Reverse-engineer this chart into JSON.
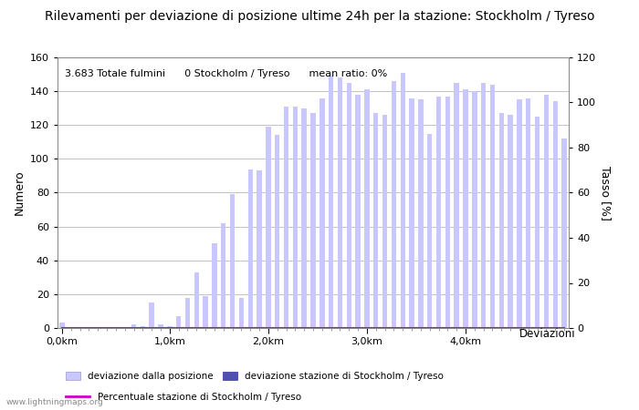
{
  "title": "Rilevamenti per deviazione di posizione ultime 24h per la stazione: Stockholm / Tyreso",
  "annotation": "3.683 Totale fulmini      0 Stockholm / Tyreso      mean ratio: 0%",
  "xlabel": "Deviazioni",
  "ylabel_left": "Numero",
  "ylabel_right": "Tasso [%]",
  "ylim_left": [
    0,
    160
  ],
  "ylim_right": [
    0,
    120
  ],
  "yticks_left": [
    0,
    20,
    40,
    60,
    80,
    100,
    120,
    140,
    160
  ],
  "yticks_right": [
    0,
    20,
    40,
    60,
    80,
    100,
    120
  ],
  "bar_values": [
    3,
    0,
    0,
    0,
    0,
    0,
    0,
    0,
    2,
    1,
    15,
    2,
    1,
    7,
    18,
    33,
    19,
    50,
    62,
    79,
    18,
    94,
    93,
    119,
    114,
    131,
    131,
    130,
    127,
    136,
    149,
    148,
    145,
    138,
    141,
    127,
    126,
    146,
    151,
    136,
    135,
    115,
    137,
    137,
    145,
    141,
    140,
    145,
    144,
    127,
    126,
    135,
    136,
    125,
    138,
    134,
    112
  ],
  "station_values": [
    0,
    0,
    0,
    0,
    0,
    0,
    0,
    0,
    0,
    0,
    0,
    0,
    0,
    0,
    0,
    0,
    0,
    0,
    0,
    0,
    0,
    0,
    0,
    0,
    0,
    0,
    0,
    0,
    0,
    0,
    0,
    0,
    0,
    0,
    0,
    0,
    0,
    0,
    0,
    0,
    0,
    0,
    0,
    0,
    0,
    0,
    0,
    0,
    0,
    0,
    0,
    0,
    0,
    0,
    0,
    0,
    0
  ],
  "percent_values": [
    0,
    0,
    0,
    0,
    0,
    0,
    0,
    0,
    0,
    0,
    0,
    0,
    0,
    0,
    0,
    0,
    0,
    0,
    0,
    0,
    0,
    0,
    0,
    0,
    0,
    0,
    0,
    0,
    0,
    0,
    0,
    0,
    0,
    0,
    0,
    0,
    0,
    0,
    0,
    0,
    0,
    0,
    0,
    0,
    0,
    0,
    0,
    0,
    0,
    0,
    0,
    0,
    0,
    0,
    0,
    0,
    0
  ],
  "bar_color": "#c8c8ff",
  "station_bar_color": "#5050b0",
  "percent_line_color": "#cc00cc",
  "xtick_labels": [
    "0,0km",
    "1,0km",
    "2,0km",
    "3,0km",
    "4,0km"
  ],
  "n_bars": 57,
  "bar_width": 0.55,
  "background_color": "#ffffff",
  "plot_bg_color": "#ffffff",
  "grid_color": "#aaaaaa",
  "legend_label_light": "deviazione dalla posizione",
  "legend_label_dark": "deviazione stazione di Stockholm / Tyreso",
  "legend_label_line": "Percentuale stazione di Stockholm / Tyreso",
  "watermark": "www.lightningmaps.org",
  "title_fontsize": 10,
  "axis_fontsize": 9,
  "tick_fontsize": 8,
  "annotation_fontsize": 8
}
